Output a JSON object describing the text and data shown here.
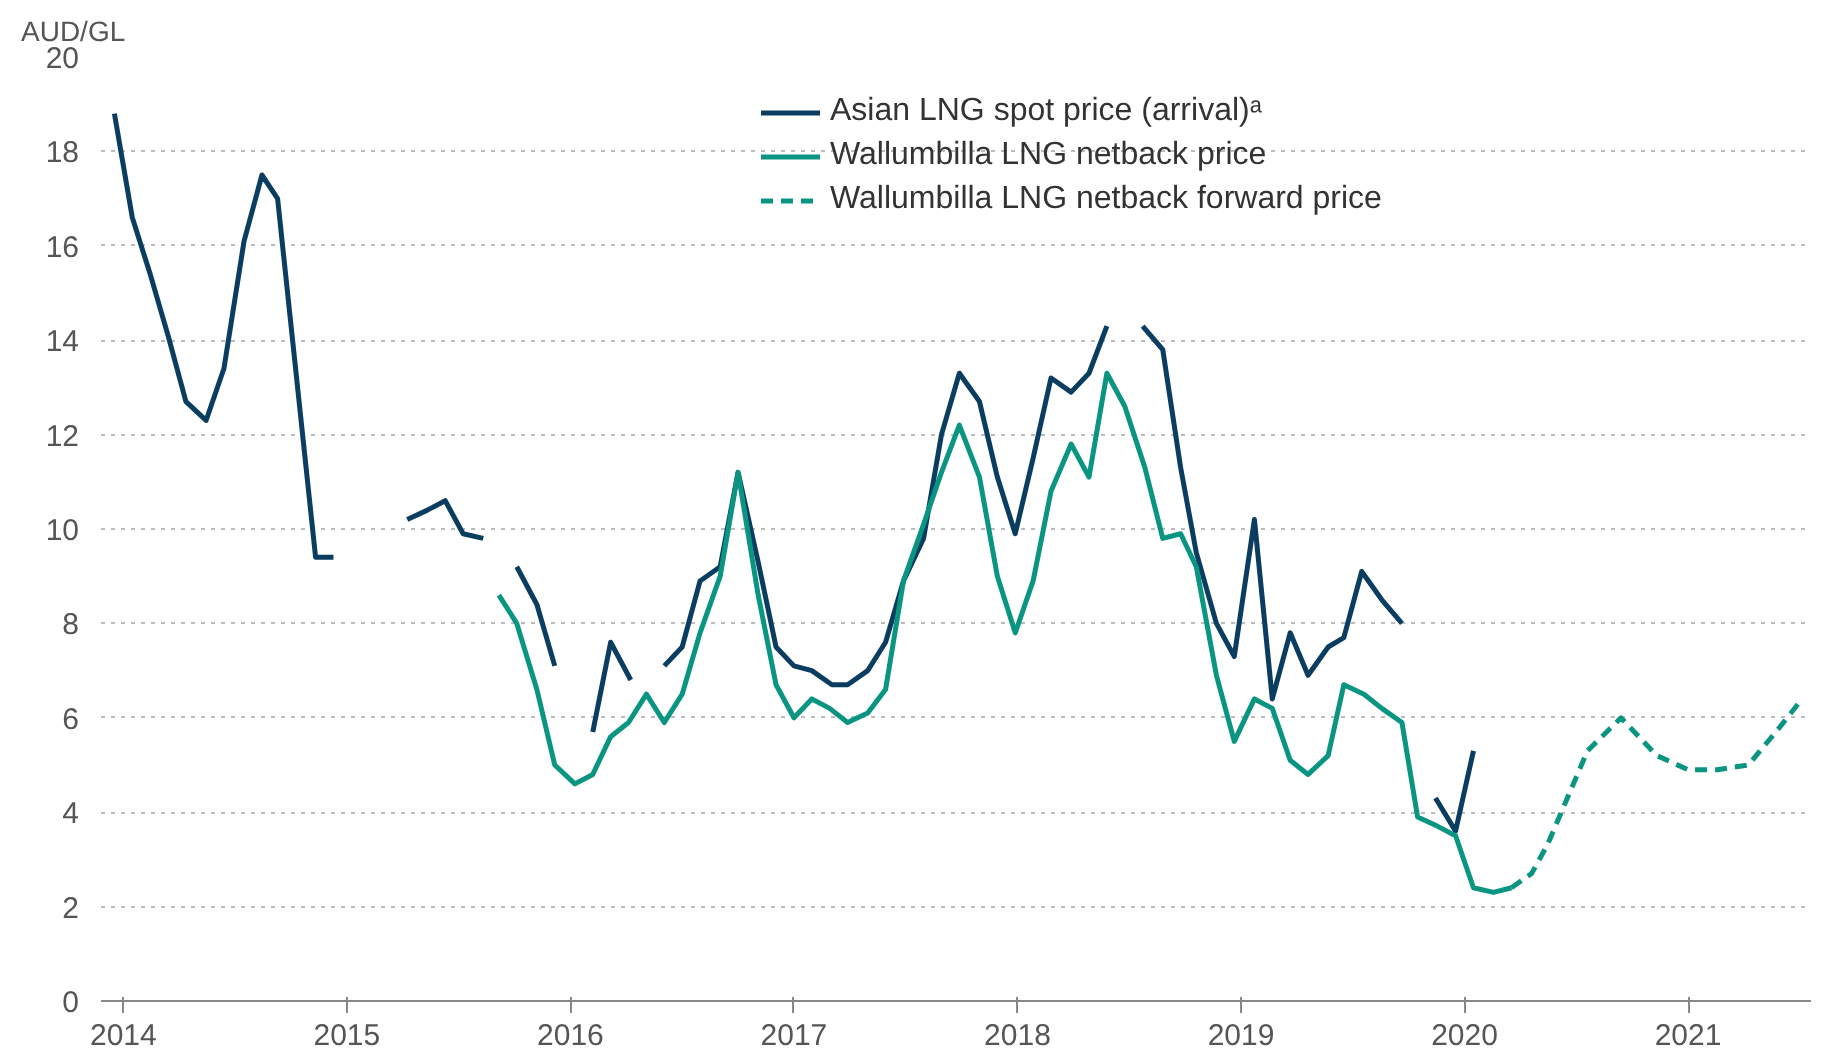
{
  "chart_data": {
    "type": "line",
    "ylabel": "AUD/GL",
    "xlim": [
      2013.9,
      2021.55
    ],
    "ylim": [
      0,
      20
    ],
    "xticks": [
      2014,
      2015,
      2016,
      2017,
      2018,
      2019,
      2020,
      2021
    ],
    "yticks": [
      0,
      2,
      4,
      6,
      8,
      10,
      12,
      14,
      16,
      18,
      20
    ],
    "grid": "y",
    "legend": "top",
    "marker": "none",
    "series": [
      {
        "name": "Asian LNG spot price (arrival)ᵃ",
        "color": "#0b3d61",
        "line_style": "solid",
        "x": [
          2013.96,
          2014.04,
          2014.12,
          2014.2,
          2014.28,
          2014.37,
          2014.45,
          2014.54,
          2014.62,
          2014.69,
          2014.86,
          2014.94,
          2015.1,
          2015.27,
          2015.36,
          2015.44,
          2015.52,
          2015.61,
          2015.68,
          2015.76,
          2015.85,
          2015.93,
          2016.02,
          2016.1,
          2016.18,
          2016.27,
          2016.34,
          2016.42,
          2016.5,
          2016.58,
          2016.67,
          2016.75,
          2016.84,
          2016.92,
          2017.0,
          2017.08,
          2017.17,
          2017.24,
          2017.33,
          2017.41,
          2017.49,
          2017.58,
          2017.66,
          2017.74,
          2017.83,
          2017.91,
          2017.99,
          2018.07,
          2018.15,
          2018.24,
          2018.32,
          2018.4,
          2018.48,
          2018.56,
          2018.65,
          2018.73,
          2018.8,
          2018.89,
          2018.97,
          2019.06,
          2019.14,
          2019.22,
          2019.3,
          2019.39,
          2019.46,
          2019.54,
          2019.63,
          2019.72,
          2019.79,
          2019.87,
          2019.96,
          2020.04
        ],
        "values": [
          18.8,
          16.6,
          15.4,
          14.1,
          12.7,
          12.3,
          13.4,
          16.1,
          17.5,
          17.0,
          9.4,
          9.4,
          null,
          10.2,
          10.4,
          10.6,
          9.9,
          9.8,
          null,
          9.2,
          8.4,
          7.1,
          null,
          5.7,
          7.6,
          6.8,
          null,
          7.1,
          7.5,
          8.9,
          9.2,
          11.2,
          9.3,
          7.5,
          7.1,
          7.0,
          6.7,
          6.7,
          7.0,
          7.6,
          8.9,
          9.8,
          12.0,
          13.3,
          12.7,
          11.1,
          9.9,
          11.5,
          13.2,
          12.9,
          13.3,
          14.3,
          null,
          14.3,
          13.8,
          11.3,
          9.5,
          8.0,
          7.3,
          10.2,
          6.4,
          7.8,
          6.9,
          7.5,
          7.7,
          9.1,
          8.5,
          8.0,
          null,
          4.3,
          3.6,
          5.3
        ]
      },
      {
        "name": "Wallumbilla LNG netback price",
        "color": "#0a9582",
        "line_style": "solid",
        "x": [
          2015.68,
          2015.76,
          2015.85,
          2015.93,
          2016.02,
          2016.1,
          2016.18,
          2016.26,
          2016.34,
          2016.42,
          2016.5,
          2016.58,
          2016.67,
          2016.75,
          2016.84,
          2016.92,
          2017.0,
          2017.08,
          2017.16,
          2017.24,
          2017.33,
          2017.41,
          2017.49,
          2017.58,
          2017.66,
          2017.74,
          2017.83,
          2017.91,
          2017.99,
          2018.07,
          2018.15,
          2018.24,
          2018.32,
          2018.4,
          2018.48,
          2018.57,
          2018.65,
          2018.73,
          2018.8,
          2018.89,
          2018.97,
          2019.06,
          2019.14,
          2019.22,
          2019.3,
          2019.39,
          2019.46,
          2019.55,
          2019.63,
          2019.72,
          2019.79,
          2019.88,
          2019.96,
          2020.04,
          2020.13,
          2020.21
        ],
        "values": [
          8.6,
          8.0,
          6.6,
          5.0,
          4.6,
          4.8,
          5.6,
          5.9,
          6.5,
          5.9,
          6.5,
          7.8,
          9.0,
          11.2,
          8.6,
          6.7,
          6.0,
          6.4,
          6.2,
          5.9,
          6.1,
          6.6,
          8.9,
          10.1,
          11.2,
          12.2,
          11.1,
          9.0,
          7.8,
          8.9,
          10.8,
          11.8,
          11.1,
          13.3,
          12.6,
          11.3,
          9.8,
          9.9,
          9.2,
          6.9,
          5.5,
          6.4,
          6.2,
          5.1,
          4.8,
          5.2,
          6.7,
          6.5,
          6.2,
          5.9,
          3.9,
          3.7,
          3.5,
          2.4,
          2.3,
          2.4
        ]
      },
      {
        "name": "Wallumbilla LNG netback forward price",
        "color": "#0a9582",
        "line_style": "dashed",
        "x": [
          2020.21,
          2020.3,
          2020.37,
          2020.46,
          2020.55,
          2020.7,
          2020.86,
          2021.0,
          2021.13,
          2021.27,
          2021.41,
          2021.51
        ],
        "values": [
          2.4,
          2.7,
          3.3,
          4.3,
          5.3,
          6.0,
          5.2,
          4.9,
          4.9,
          5.0,
          5.8,
          6.4
        ]
      }
    ]
  }
}
